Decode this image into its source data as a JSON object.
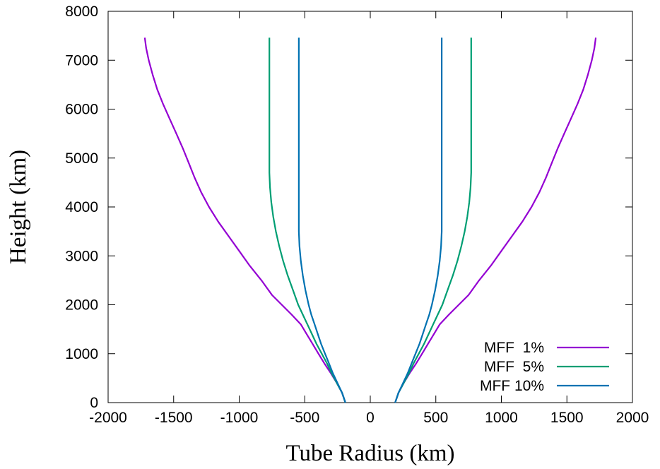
{
  "chart_data": {
    "type": "line",
    "xlabel": "Tube Radius (km)",
    "ylabel": "Height (km)",
    "xlim": [
      -2000,
      2000
    ],
    "ylim": [
      0,
      8000
    ],
    "xticks": [
      -2000,
      -1500,
      -1000,
      -500,
      0,
      500,
      1000,
      1500,
      2000
    ],
    "yticks": [
      0,
      1000,
      2000,
      3000,
      4000,
      5000,
      6000,
      7000,
      8000
    ],
    "xtick_labels": [
      "-2000",
      "-1500",
      "-1000",
      "-500",
      "0",
      "500",
      "1000",
      "1500",
      "2000"
    ],
    "ytick_labels": [
      "0",
      "1000",
      "2000",
      "3000",
      "4000",
      "5000",
      "6000",
      "7000",
      "8000"
    ],
    "grid": false,
    "legend_position": "bottom-right",
    "series": [
      {
        "name": "MFF  1%",
        "color": "#9400d3",
        "mirrored": true,
        "points": [
          [
            190,
            0
          ],
          [
            215,
            200
          ],
          [
            255,
            400
          ],
          [
            300,
            600
          ],
          [
            350,
            800
          ],
          [
            395,
            1000
          ],
          [
            440,
            1200
          ],
          [
            485,
            1400
          ],
          [
            530,
            1600
          ],
          [
            600,
            1800
          ],
          [
            675,
            2000
          ],
          [
            750,
            2200
          ],
          [
            830,
            2500
          ],
          [
            920,
            2800
          ],
          [
            1000,
            3100
          ],
          [
            1080,
            3400
          ],
          [
            1160,
            3700
          ],
          [
            1230,
            4000
          ],
          [
            1290,
            4300
          ],
          [
            1340,
            4600
          ],
          [
            1385,
            4900
          ],
          [
            1430,
            5200
          ],
          [
            1480,
            5500
          ],
          [
            1530,
            5800
          ],
          [
            1580,
            6100
          ],
          [
            1625,
            6400
          ],
          [
            1660,
            6700
          ],
          [
            1690,
            7000
          ],
          [
            1710,
            7250
          ],
          [
            1720,
            7460
          ]
        ]
      },
      {
        "name": "MFF  5%",
        "color": "#009e73",
        "mirrored": true,
        "points": [
          [
            190,
            0
          ],
          [
            215,
            200
          ],
          [
            255,
            400
          ],
          [
            295,
            600
          ],
          [
            330,
            800
          ],
          [
            370,
            1000
          ],
          [
            410,
            1200
          ],
          [
            445,
            1400
          ],
          [
            480,
            1600
          ],
          [
            515,
            1800
          ],
          [
            550,
            2000
          ],
          [
            590,
            2300
          ],
          [
            630,
            2600
          ],
          [
            665,
            2900
          ],
          [
            695,
            3200
          ],
          [
            720,
            3500
          ],
          [
            740,
            3800
          ],
          [
            755,
            4100
          ],
          [
            765,
            4400
          ],
          [
            770,
            4700
          ],
          [
            770,
            5500
          ],
          [
            770,
            6500
          ],
          [
            770,
            7460
          ]
        ]
      },
      {
        "name": "MFF 10%",
        "color": "#0072b2",
        "mirrored": true,
        "points": [
          [
            190,
            0
          ],
          [
            215,
            200
          ],
          [
            250,
            400
          ],
          [
            285,
            600
          ],
          [
            315,
            800
          ],
          [
            345,
            1000
          ],
          [
            375,
            1200
          ],
          [
            400,
            1400
          ],
          [
            425,
            1600
          ],
          [
            450,
            1800
          ],
          [
            470,
            2000
          ],
          [
            495,
            2300
          ],
          [
            515,
            2600
          ],
          [
            530,
            2900
          ],
          [
            540,
            3200
          ],
          [
            545,
            3500
          ],
          [
            545,
            4500
          ],
          [
            545,
            5500
          ],
          [
            545,
            6500
          ],
          [
            545,
            7460
          ]
        ]
      }
    ]
  }
}
